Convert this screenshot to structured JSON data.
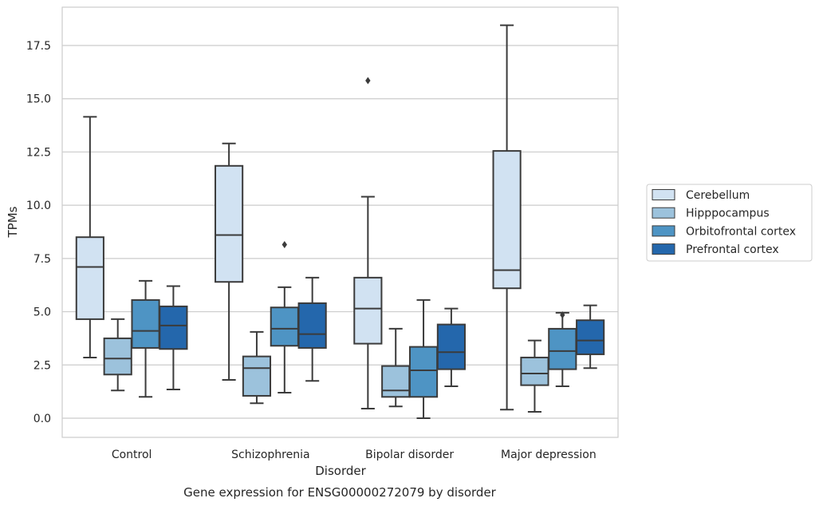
{
  "chart_data": {
    "type": "box",
    "xlabel": "Disorder",
    "ylabel": "TPMs",
    "caption": "Gene expression for ENSG00000272079 by disorder",
    "ylim": [
      -0.9,
      19.3
    ],
    "yticks": [
      "0.0",
      "2.5",
      "5.0",
      "7.5",
      "10.0",
      "12.5",
      "15.0",
      "17.5"
    ],
    "ytick_values": [
      0,
      2.5,
      5,
      7.5,
      10,
      12.5,
      15,
      17.5
    ],
    "grid": "horizontal",
    "legend_position": "right",
    "categories": [
      "Control",
      "Schizophrenia",
      "Bipolar disorder",
      "Major depression"
    ],
    "series": [
      {
        "name": "Cerebellum",
        "color": "#d1e2f2",
        "boxes": [
          {
            "whisker_low": 2.85,
            "q1": 4.65,
            "median": 7.1,
            "q3": 8.5,
            "whisker_high": 14.15,
            "outliers": []
          },
          {
            "whisker_low": 1.8,
            "q1": 6.4,
            "median": 8.6,
            "q3": 11.85,
            "whisker_high": 12.9,
            "outliers": []
          },
          {
            "whisker_low": 0.45,
            "q1": 3.5,
            "median": 5.15,
            "q3": 6.6,
            "whisker_high": 10.4,
            "outliers": [
              15.85
            ]
          },
          {
            "whisker_low": 0.4,
            "q1": 6.1,
            "median": 6.95,
            "q3": 12.55,
            "whisker_high": 18.45,
            "outliers": []
          }
        ]
      },
      {
        "name": "Hipppocampus",
        "color": "#9cc2dc",
        "boxes": [
          {
            "whisker_low": 1.3,
            "q1": 2.05,
            "median": 2.8,
            "q3": 3.75,
            "whisker_high": 4.65,
            "outliers": []
          },
          {
            "whisker_low": 0.7,
            "q1": 1.05,
            "median": 2.35,
            "q3": 2.9,
            "whisker_high": 4.05,
            "outliers": []
          },
          {
            "whisker_low": 0.55,
            "q1": 1.0,
            "median": 1.3,
            "q3": 2.45,
            "whisker_high": 4.2,
            "outliers": []
          },
          {
            "whisker_low": 0.3,
            "q1": 1.55,
            "median": 2.1,
            "q3": 2.85,
            "whisker_high": 3.65,
            "outliers": []
          }
        ]
      },
      {
        "name": "Orbitofrontal cortex",
        "color": "#4e94c4",
        "boxes": [
          {
            "whisker_low": 1.0,
            "q1": 3.3,
            "median": 4.1,
            "q3": 5.55,
            "whisker_high": 6.45,
            "outliers": []
          },
          {
            "whisker_low": 1.2,
            "q1": 3.4,
            "median": 4.2,
            "q3": 5.2,
            "whisker_high": 6.15,
            "outliers": [
              8.15
            ]
          },
          {
            "whisker_low": 0.0,
            "q1": 1.0,
            "median": 2.25,
            "q3": 3.35,
            "whisker_high": 5.55,
            "outliers": []
          },
          {
            "whisker_low": 1.5,
            "q1": 2.3,
            "median": 3.15,
            "q3": 4.2,
            "whisker_high": 4.95,
            "outliers": [
              4.85
            ]
          }
        ]
      },
      {
        "name": "Prefrontal cortex",
        "color": "#2467ac",
        "boxes": [
          {
            "whisker_low": 1.35,
            "q1": 3.25,
            "median": 4.35,
            "q3": 5.25,
            "whisker_high": 6.2,
            "outliers": []
          },
          {
            "whisker_low": 1.75,
            "q1": 3.3,
            "median": 3.95,
            "q3": 5.4,
            "whisker_high": 6.6,
            "outliers": []
          },
          {
            "whisker_low": 1.5,
            "q1": 2.3,
            "median": 3.1,
            "q3": 4.4,
            "whisker_high": 5.15,
            "outliers": []
          },
          {
            "whisker_low": 2.35,
            "q1": 3.0,
            "median": 3.65,
            "q3": 4.6,
            "whisker_high": 5.3,
            "outliers": []
          }
        ]
      }
    ]
  }
}
